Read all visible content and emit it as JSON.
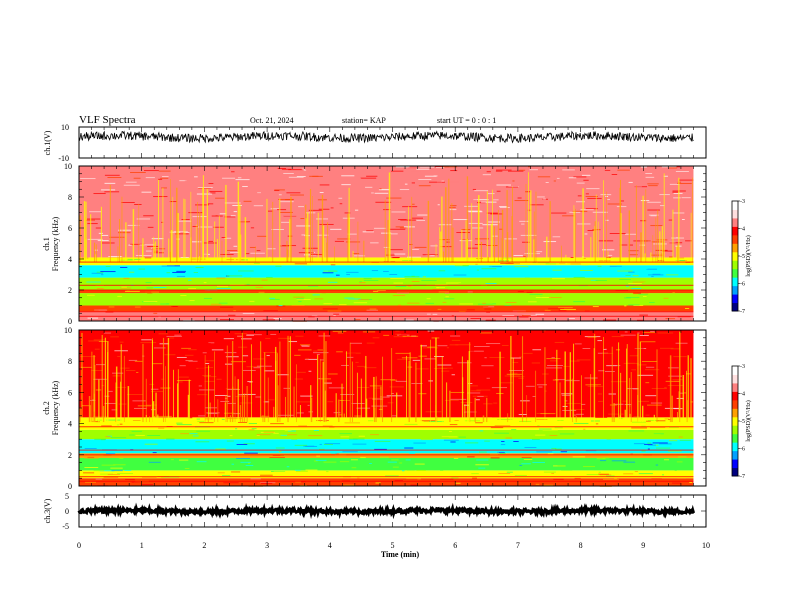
{
  "header": {
    "title": "VLF Spectra",
    "date": "Oct. 21, 2024",
    "station": "station= KAP",
    "start": "start UT =  0 : 0 : 1"
  },
  "colors": {
    "cmap": [
      "#00007f",
      "#0000ff",
      "#00a0ff",
      "#00ffff",
      "#40ff40",
      "#a0ff00",
      "#ffff00",
      "#ffa000",
      "#ff4000",
      "#ff0000",
      "#ff8080",
      "#ffe0e0",
      "#ffffff"
    ]
  },
  "chart_data": [
    {
      "type": "line",
      "name": "ch1-waveform",
      "ylabel": "ch.1(V)",
      "ylim": [
        -10,
        10
      ],
      "yticklabels": [
        "10",
        "-10"
      ],
      "xlim": [
        0,
        10
      ],
      "mean": 3.6,
      "amplitude": 2.8
    },
    {
      "type": "heatmap",
      "name": "ch1-spectrogram",
      "ylabel_line1": "ch.1",
      "ylabel_line2": "Frequency (kHz)",
      "ylim": [
        0,
        10
      ],
      "yticks": [
        0,
        2,
        4,
        6,
        8,
        10
      ],
      "yticklabels": [
        "0",
        "2",
        "4",
        "6",
        "8",
        "10"
      ],
      "xlim": [
        0,
        10
      ],
      "data_end_min": 9.8,
      "bands_khz": [
        {
          "from": 0.0,
          "to": 0.6,
          "level": 10
        },
        {
          "from": 0.6,
          "to": 1.0,
          "level": 8
        },
        {
          "from": 1.0,
          "to": 1.8,
          "level": 5
        },
        {
          "from": 1.8,
          "to": 2.0,
          "level": 8
        },
        {
          "from": 2.0,
          "to": 2.8,
          "level": 5
        },
        {
          "from": 2.8,
          "to": 3.6,
          "level": 3
        },
        {
          "from": 3.6,
          "to": 4.1,
          "level": 6
        },
        {
          "from": 4.1,
          "to": 10.0,
          "level": 10
        }
      ],
      "colorbar": {
        "label": "log(PSD)(V²/Hz)",
        "range": [
          -7,
          -3
        ],
        "ticks": [
          "-3",
          "-4",
          "-5",
          "-6",
          "-7"
        ]
      }
    },
    {
      "type": "heatmap",
      "name": "ch2-spectrogram",
      "ylabel_line1": "ch.2",
      "ylabel_line2": "Frequency (kHz)",
      "ylim": [
        0,
        10
      ],
      "yticks": [
        0,
        2,
        4,
        6,
        8,
        10
      ],
      "yticklabels": [
        "0",
        "2",
        "4",
        "6",
        "8",
        "10"
      ],
      "xlim": [
        0,
        10
      ],
      "data_end_min": 9.8,
      "bands_khz": [
        {
          "from": 0.0,
          "to": 0.5,
          "level": 8
        },
        {
          "from": 0.5,
          "to": 1.0,
          "level": 6
        },
        {
          "from": 1.0,
          "to": 1.8,
          "level": 4
        },
        {
          "from": 1.8,
          "to": 2.1,
          "level": 7
        },
        {
          "from": 2.1,
          "to": 3.0,
          "level": 3
        },
        {
          "from": 3.0,
          "to": 3.6,
          "level": 5
        },
        {
          "from": 3.6,
          "to": 4.4,
          "level": 6
        },
        {
          "from": 4.4,
          "to": 10.0,
          "level": 9
        }
      ],
      "colorbar": {
        "label": "log(PSD)(V²/Hz)",
        "range": [
          -7,
          -3
        ],
        "ticks": [
          "-3",
          "-4",
          "-5",
          "-6",
          "-7"
        ]
      }
    },
    {
      "type": "line",
      "name": "ch3-waveform",
      "ylabel": "ch.3(V)",
      "ylim": [
        -5,
        5
      ],
      "yticklabels": [
        "5",
        "0",
        "-5"
      ],
      "xlim": [
        0,
        10
      ],
      "mean": 0.0,
      "amplitude": 0.6
    }
  ],
  "xaxis": {
    "label": "Time (min)",
    "ticks": [
      0,
      1,
      2,
      3,
      4,
      5,
      6,
      7,
      8,
      9,
      10
    ],
    "ticklabels": [
      "0",
      "1",
      "2",
      "3",
      "4",
      "5",
      "6",
      "7",
      "8",
      "9",
      "10"
    ]
  }
}
